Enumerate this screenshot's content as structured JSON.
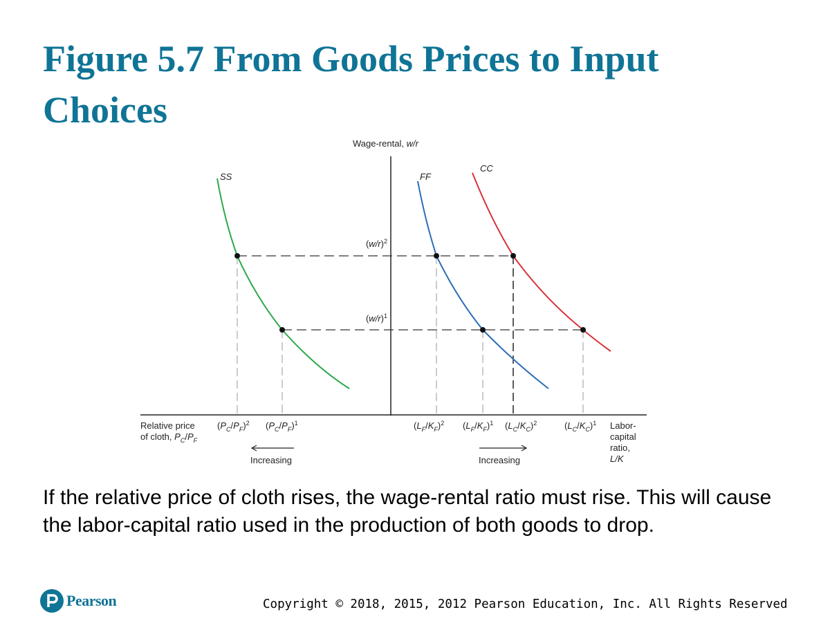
{
  "title": "Figure 5.7 From Goods Prices to Input Choices",
  "diagram": {
    "labels": [
      [
        [
          "Wage-rental, ",
          "normal"
        ],
        [
          "w/r",
          "italic"
        ]
      ],
      [
        [
          "SS",
          "italic"
        ]
      ],
      [
        [
          "FF",
          "italic"
        ]
      ],
      [
        [
          "CC",
          "italic"
        ]
      ],
      [
        [
          "(",
          "normal"
        ],
        [
          "w/r",
          "italic"
        ],
        [
          ")",
          "normal"
        ],
        [
          "2",
          "sup"
        ]
      ],
      [
        [
          "(",
          "normal"
        ],
        [
          "w/r",
          "italic"
        ],
        [
          ")",
          "normal"
        ],
        [
          "1",
          "sup"
        ]
      ],
      [
        [
          "Relative price",
          "normal"
        ]
      ],
      [
        [
          "of cloth, ",
          "normal"
        ],
        [
          "P",
          "italic"
        ],
        [
          "C",
          "sub"
        ],
        [
          "/",
          "normal"
        ],
        [
          "P",
          "italic"
        ],
        [
          "F",
          "sub"
        ]
      ],
      [
        [
          "(",
          "normal"
        ],
        [
          "P",
          "italic"
        ],
        [
          "C",
          "sub"
        ],
        [
          "/",
          "normal"
        ],
        [
          "P",
          "italic"
        ],
        [
          "F",
          "sub"
        ],
        [
          ")",
          "normal"
        ],
        [
          "2",
          "sup"
        ]
      ],
      [
        [
          "(",
          "normal"
        ],
        [
          "P",
          "italic"
        ],
        [
          "C",
          "sub"
        ],
        [
          "/",
          "normal"
        ],
        [
          "P",
          "italic"
        ],
        [
          "F",
          "sub"
        ],
        [
          ")",
          "normal"
        ],
        [
          "1",
          "sup"
        ]
      ],
      [
        [
          "(",
          "normal"
        ],
        [
          "L",
          "italic"
        ],
        [
          "F",
          "sub"
        ],
        [
          "/",
          "normal"
        ],
        [
          "K",
          "italic"
        ],
        [
          "F",
          "sub"
        ],
        [
          ")",
          "normal"
        ],
        [
          "2",
          "sup"
        ]
      ],
      [
        [
          "(",
          "normal"
        ],
        [
          "L",
          "italic"
        ],
        [
          "F",
          "sub"
        ],
        [
          "/",
          "normal"
        ],
        [
          "K",
          "italic"
        ],
        [
          "F",
          "sub"
        ],
        [
          ")",
          "normal"
        ],
        [
          "1",
          "sup"
        ]
      ],
      [
        [
          "(",
          "normal"
        ],
        [
          "L",
          "italic"
        ],
        [
          "C",
          "sub"
        ],
        [
          "/",
          "normal"
        ],
        [
          "K",
          "italic"
        ],
        [
          "C",
          "sub"
        ],
        [
          ")",
          "normal"
        ],
        [
          "2",
          "sup"
        ]
      ],
      [
        [
          "(",
          "normal"
        ],
        [
          "L",
          "italic"
        ],
        [
          "C",
          "sub"
        ],
        [
          "/",
          "normal"
        ],
        [
          "K",
          "italic"
        ],
        [
          "C",
          "sub"
        ],
        [
          ")",
          "normal"
        ],
        [
          "1",
          "sup"
        ]
      ],
      [
        [
          "Labor-",
          "normal"
        ]
      ],
      [
        [
          "capital",
          "normal"
        ]
      ],
      [
        [
          "ratio,",
          "normal"
        ]
      ],
      [
        [
          "L/K",
          "italic"
        ]
      ],
      [
        [
          "Increasing",
          "normal"
        ]
      ],
      [
        [
          "Increasing",
          "normal"
        ]
      ]
    ]
  },
  "body": "If the relative price of cloth rises, the wage-rental ratio must rise. This will cause the labor-capital ratio used in the production of both goods to drop.",
  "footer": {
    "logo": "Pearson",
    "copyright": "Copyright © 2018, 2015, 2012 Pearson Education, Inc. All Rights Reserved"
  }
}
